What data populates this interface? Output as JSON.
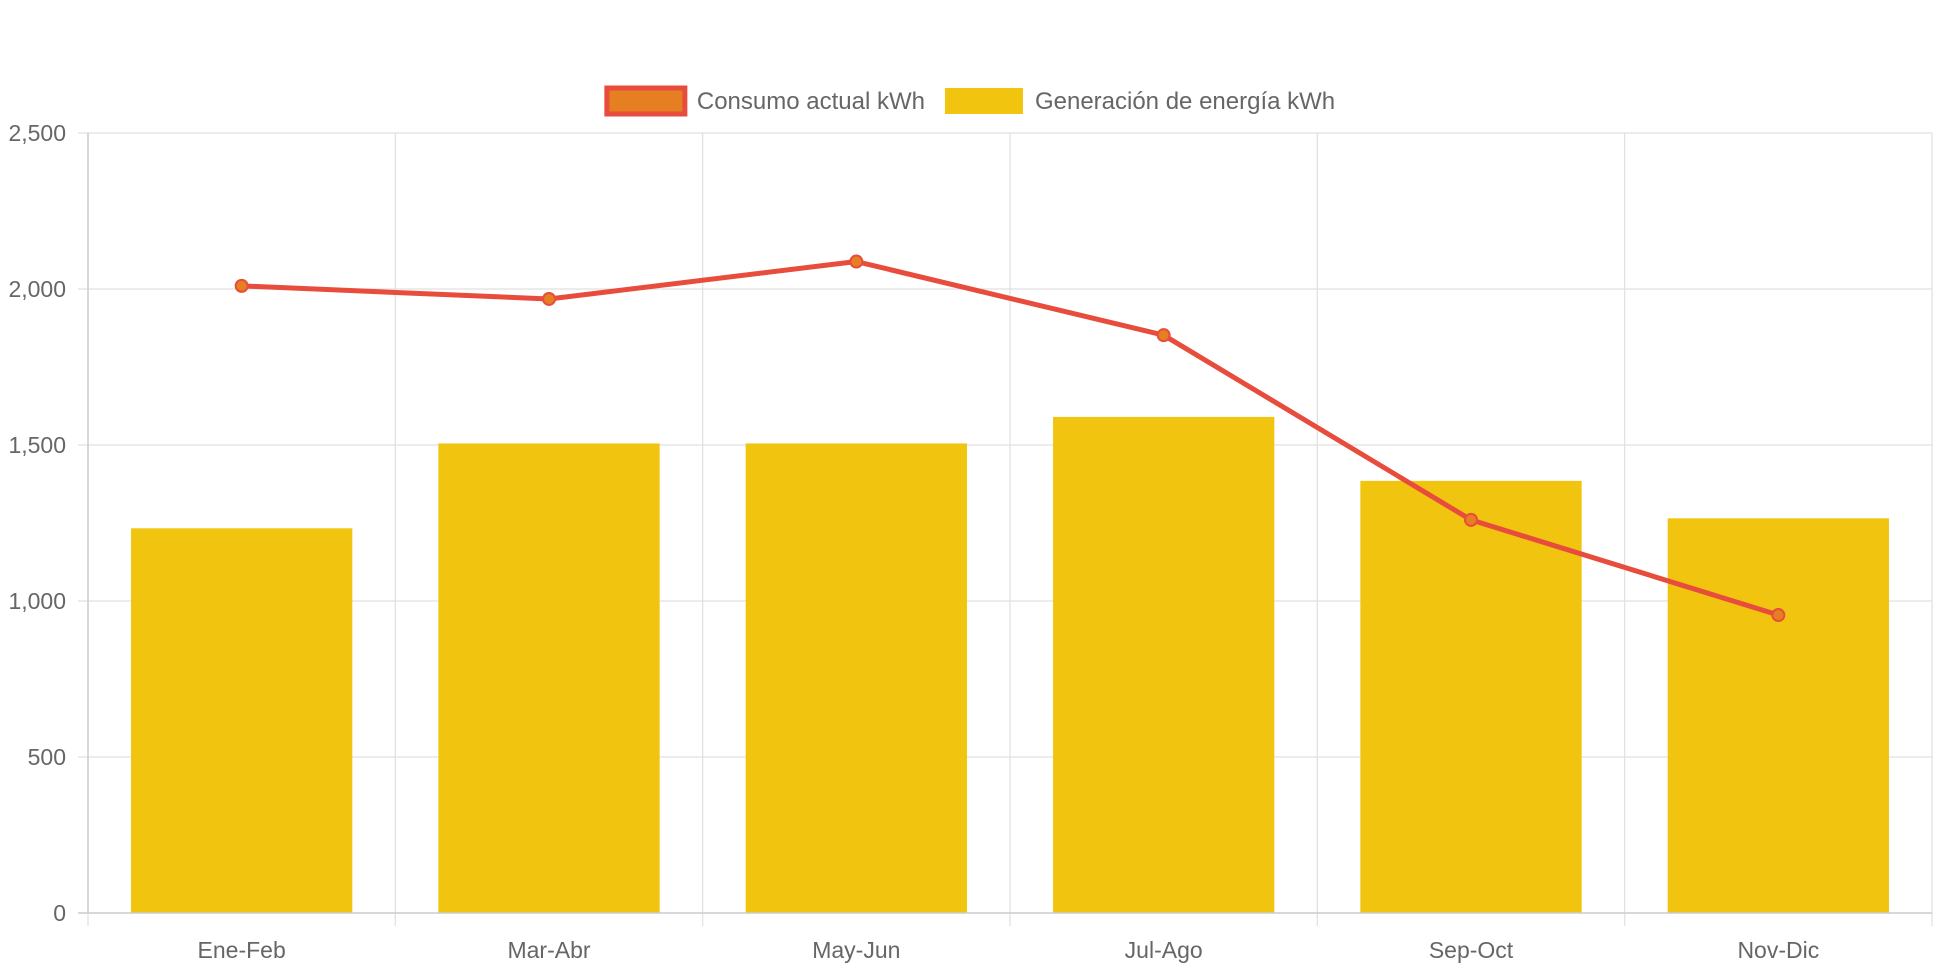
{
  "chart_data": {
    "type": "bar",
    "categories": [
      "Ene-Feb",
      "Mar-Abr",
      "May-Jun",
      "Jul-Ago",
      "Sep-Oct",
      "Nov-Dic"
    ],
    "series": [
      {
        "name": "Consumo actual kWh",
        "type": "line",
        "values": [
          2010,
          1968,
          2088,
          1852,
          1260,
          955
        ],
        "color": "#e74c3c",
        "point_fill": "#e67e22"
      },
      {
        "name": "Generación de energía kWh",
        "type": "bar",
        "values": [
          1233,
          1505,
          1505,
          1590,
          1385,
          1265
        ],
        "color": "#f1c40f"
      }
    ],
    "title": "",
    "xlabel": "",
    "ylabel": "",
    "ylim": [
      0,
      2500
    ],
    "yticks": [
      0,
      500,
      1000,
      1500,
      2000,
      2500
    ],
    "ytick_labels": [
      "0",
      "500",
      "1,000",
      "1,500",
      "2,000",
      "2,500"
    ],
    "grid": true,
    "legend_position": "top"
  }
}
